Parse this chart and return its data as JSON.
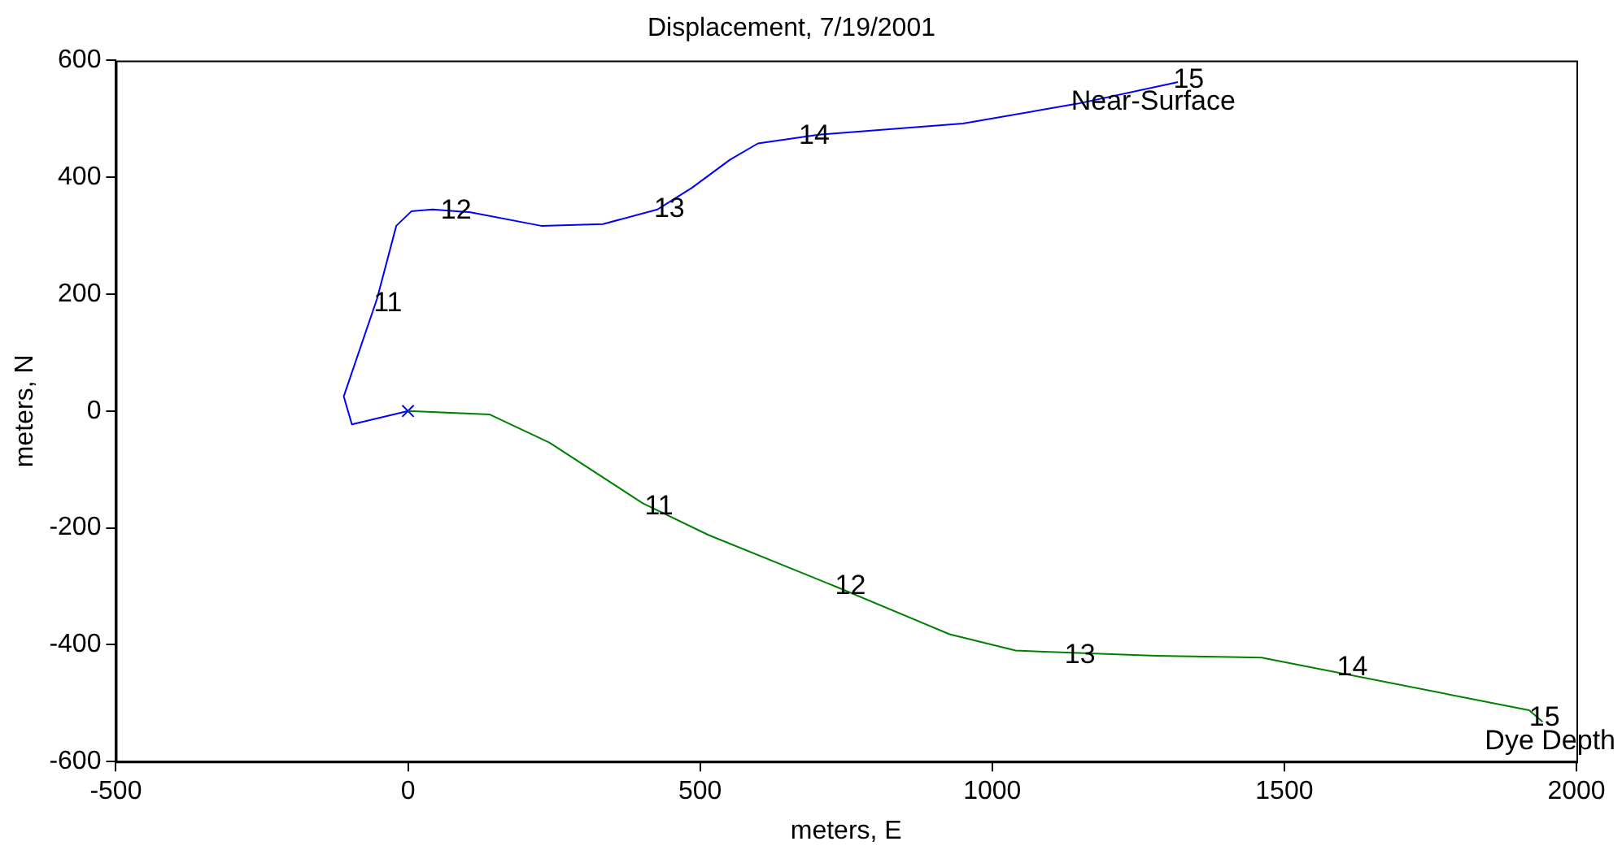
{
  "chart_data": {
    "type": "line",
    "title": "Displacement, 7/19/2001",
    "xlabel": "meters, E",
    "ylabel": "meters, N",
    "xlim": [
      -500,
      2000
    ],
    "xticks": [
      -500,
      0,
      500,
      1000,
      1500,
      2000
    ],
    "ylim": [
      -600,
      600
    ],
    "yticks": [
      -600,
      -400,
      -200,
      0,
      200,
      400,
      600
    ],
    "grid": false,
    "legend": false,
    "series": [
      {
        "type": "line",
        "color": "#0000ff",
        "x": [
          0,
          -96,
          -110,
          -53,
          -20,
          6,
          42,
          107,
          228,
          334,
          427,
          486,
          551,
          599,
          703,
          950,
          1146,
          1318
        ],
        "values": [
          0,
          -23,
          25,
          192,
          317,
          342,
          345,
          340,
          317,
          320,
          345,
          382,
          430,
          458,
          473,
          492,
          526,
          563
        ]
      },
      {
        "type": "line",
        "color": "#008000",
        "x": [
          0,
          140,
          242,
          402,
          514,
          731,
          927,
          1040,
          1281,
          1461,
          1919,
          1942
        ],
        "values": [
          0,
          -6,
          -54,
          -158,
          -212,
          -300,
          -382,
          -410,
          -419,
          -422,
          -512,
          -532
        ]
      },
      {
        "type": "scatter",
        "marker": "cross",
        "color": "#0000ff",
        "x": [
          0
        ],
        "values": [
          0
        ]
      }
    ],
    "annotations": [
      {
        "text": "11",
        "x": -59,
        "y": 184
      },
      {
        "text": "12",
        "x": 56,
        "y": 342
      },
      {
        "text": "13",
        "x": 421,
        "y": 345
      },
      {
        "text": "14",
        "x": 669,
        "y": 470
      },
      {
        "text": "15",
        "x": 1310,
        "y": 566
      },
      {
        "text": "Near-Surface",
        "x": 1135,
        "y": 529
      },
      {
        "text": "11",
        "x": 405,
        "y": -164
      },
      {
        "text": "12",
        "x": 731,
        "y": -300
      },
      {
        "text": "13",
        "x": 1124,
        "y": -419
      },
      {
        "text": "14",
        "x": 1590,
        "y": -439
      },
      {
        "text": "15",
        "x": 1919,
        "y": -525
      },
      {
        "text": "Dye Depth",
        "x": 1942,
        "y": -532
      }
    ]
  }
}
